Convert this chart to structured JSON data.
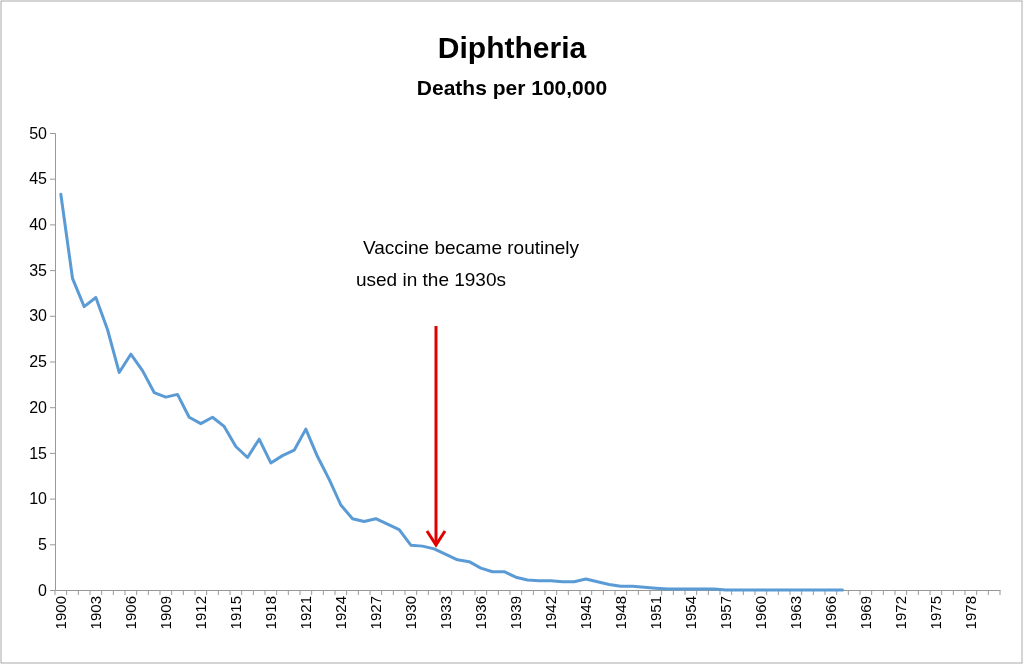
{
  "chart_data": {
    "type": "line",
    "title": "Diphtheria",
    "subtitle": "Deaths per 100,000",
    "categories": [
      "1900",
      null,
      null,
      "1903",
      null,
      null,
      "1906",
      null,
      null,
      "1909",
      null,
      null,
      "1912",
      null,
      null,
      "1915",
      null,
      null,
      "1918",
      null,
      null,
      "1921",
      null,
      null,
      "1924",
      null,
      null,
      "1927",
      null,
      null,
      "1930",
      null,
      null,
      "1933",
      null,
      null,
      "1936",
      null,
      null,
      "1939",
      null,
      null,
      "1942",
      null,
      null,
      "1945",
      null,
      null,
      "1948",
      null,
      null,
      "1951",
      null,
      null,
      "1954",
      null,
      null,
      "1957",
      null,
      null,
      "1960",
      null,
      null,
      "1963",
      null,
      null,
      "1966",
      null,
      null,
      "1969",
      null,
      null,
      "1972",
      null,
      null,
      "1975",
      null,
      null,
      "1978",
      null,
      null
    ],
    "series": [
      {
        "color": "#5b9bd5",
        "values": [
          43.3,
          34.1,
          31,
          32,
          28.5,
          23.8,
          25.8,
          24,
          21.6,
          21.1,
          21.4,
          18.9,
          18.2,
          18.9,
          17.9,
          15.7,
          14.5,
          16.5,
          13.9,
          14.7,
          15.3,
          17.6,
          14.6,
          12.1,
          9.3,
          7.8,
          7.5,
          7.8,
          7.2,
          6.6,
          4.9,
          4.8,
          4.5,
          3.9,
          3.3,
          3.1,
          2.4,
          2.0,
          2.0,
          1.4,
          1.1,
          1.0,
          1.0,
          0.9,
          0.9,
          1.2,
          0.9,
          0.6,
          0.4,
          0.4,
          0.3,
          0.2,
          0.1,
          0.1,
          0.1,
          0.1,
          0.1,
          0,
          0,
          0,
          0,
          0,
          0,
          0,
          0,
          0,
          0,
          0,
          null,
          null,
          null,
          null,
          null,
          null,
          null,
          null,
          null,
          null,
          null,
          null,
          null
        ]
      }
    ],
    "ylim": [
      0,
      50
    ],
    "yticks": [
      0,
      5,
      10,
      15,
      20,
      25,
      30,
      35,
      40,
      45,
      50
    ],
    "annotations": [
      "Vaccine became routinely used in the 1930s"
    ]
  }
}
